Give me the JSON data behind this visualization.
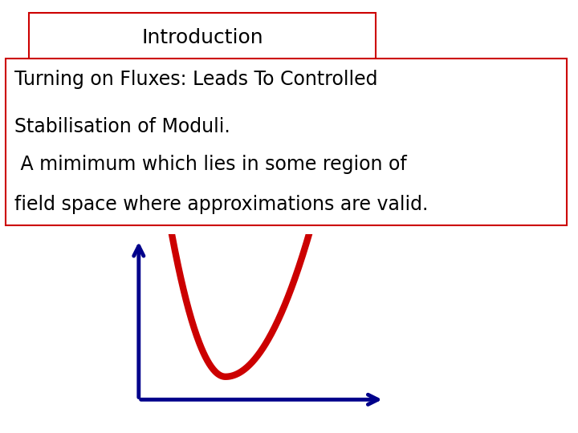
{
  "title_text": "Introduction",
  "title_box_color": "#cc0000",
  "title_font_size": 18,
  "body_line1": "Turning on Fluxes: Leads To Controlled",
  "body_line2": "Stabilisation of Moduli.",
  "body_line3": " A mimimum which lies in some region of",
  "body_line4": "field space where approximations are valid.",
  "body_box_color": "#cc0000",
  "body_font_size": 17,
  "curve_color": "#cc0000",
  "axis_color": "#00008b",
  "background_color": "#ffffff"
}
